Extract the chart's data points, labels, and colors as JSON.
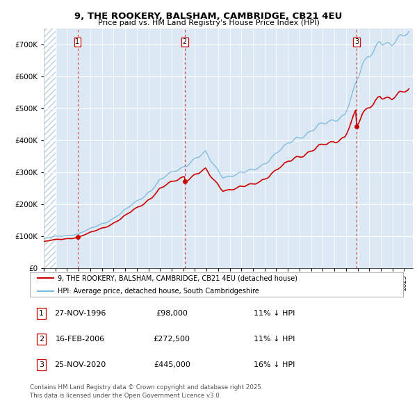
{
  "title": "9, THE ROOKERY, BALSHAM, CAMBRIDGE, CB21 4EU",
  "subtitle": "Price paid vs. HM Land Registry's House Price Index (HPI)",
  "ylabel_ticks": [
    "£0",
    "£100K",
    "£200K",
    "£300K",
    "£400K",
    "£500K",
    "£600K",
    "£700K"
  ],
  "ytick_values": [
    0,
    100000,
    200000,
    300000,
    400000,
    500000,
    600000,
    700000
  ],
  "ylim": [
    0,
    750000
  ],
  "xlim_start": 1994.0,
  "xlim_end": 2025.75,
  "hpi_color": "#7ab8d9",
  "price_color": "#cc0000",
  "bg_color": "#dce9f5",
  "hatch_color": "#b8cfe0",
  "sales": [
    {
      "label": "1",
      "date_num": 1996.9,
      "price": 98000,
      "date_str": "27-NOV-1996",
      "pct": "11%"
    },
    {
      "label": "2",
      "date_num": 2006.12,
      "price": 272500,
      "date_str": "16-FEB-2006",
      "pct": "11%"
    },
    {
      "label": "3",
      "date_num": 2020.9,
      "price": 445000,
      "date_str": "25-NOV-2020",
      "pct": "16%"
    }
  ],
  "legend_line1": "9, THE ROOKERY, BALSHAM, CAMBRIDGE, CB21 4EU (detached house)",
  "legend_line2": "HPI: Average price, detached house, South Cambridgeshire",
  "footnote": "Contains HM Land Registry data © Crown copyright and database right 2025.\nThis data is licensed under the Open Government Licence v3.0."
}
